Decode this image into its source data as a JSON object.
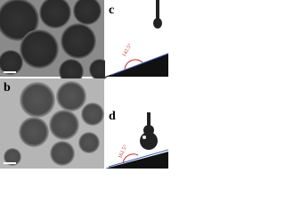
{
  "panels": [
    {
      "label": "c",
      "angle": "142.5°"
    },
    {
      "label": "b"
    },
    {
      "label": "d",
      "angle": "161.5°"
    }
  ]
}
